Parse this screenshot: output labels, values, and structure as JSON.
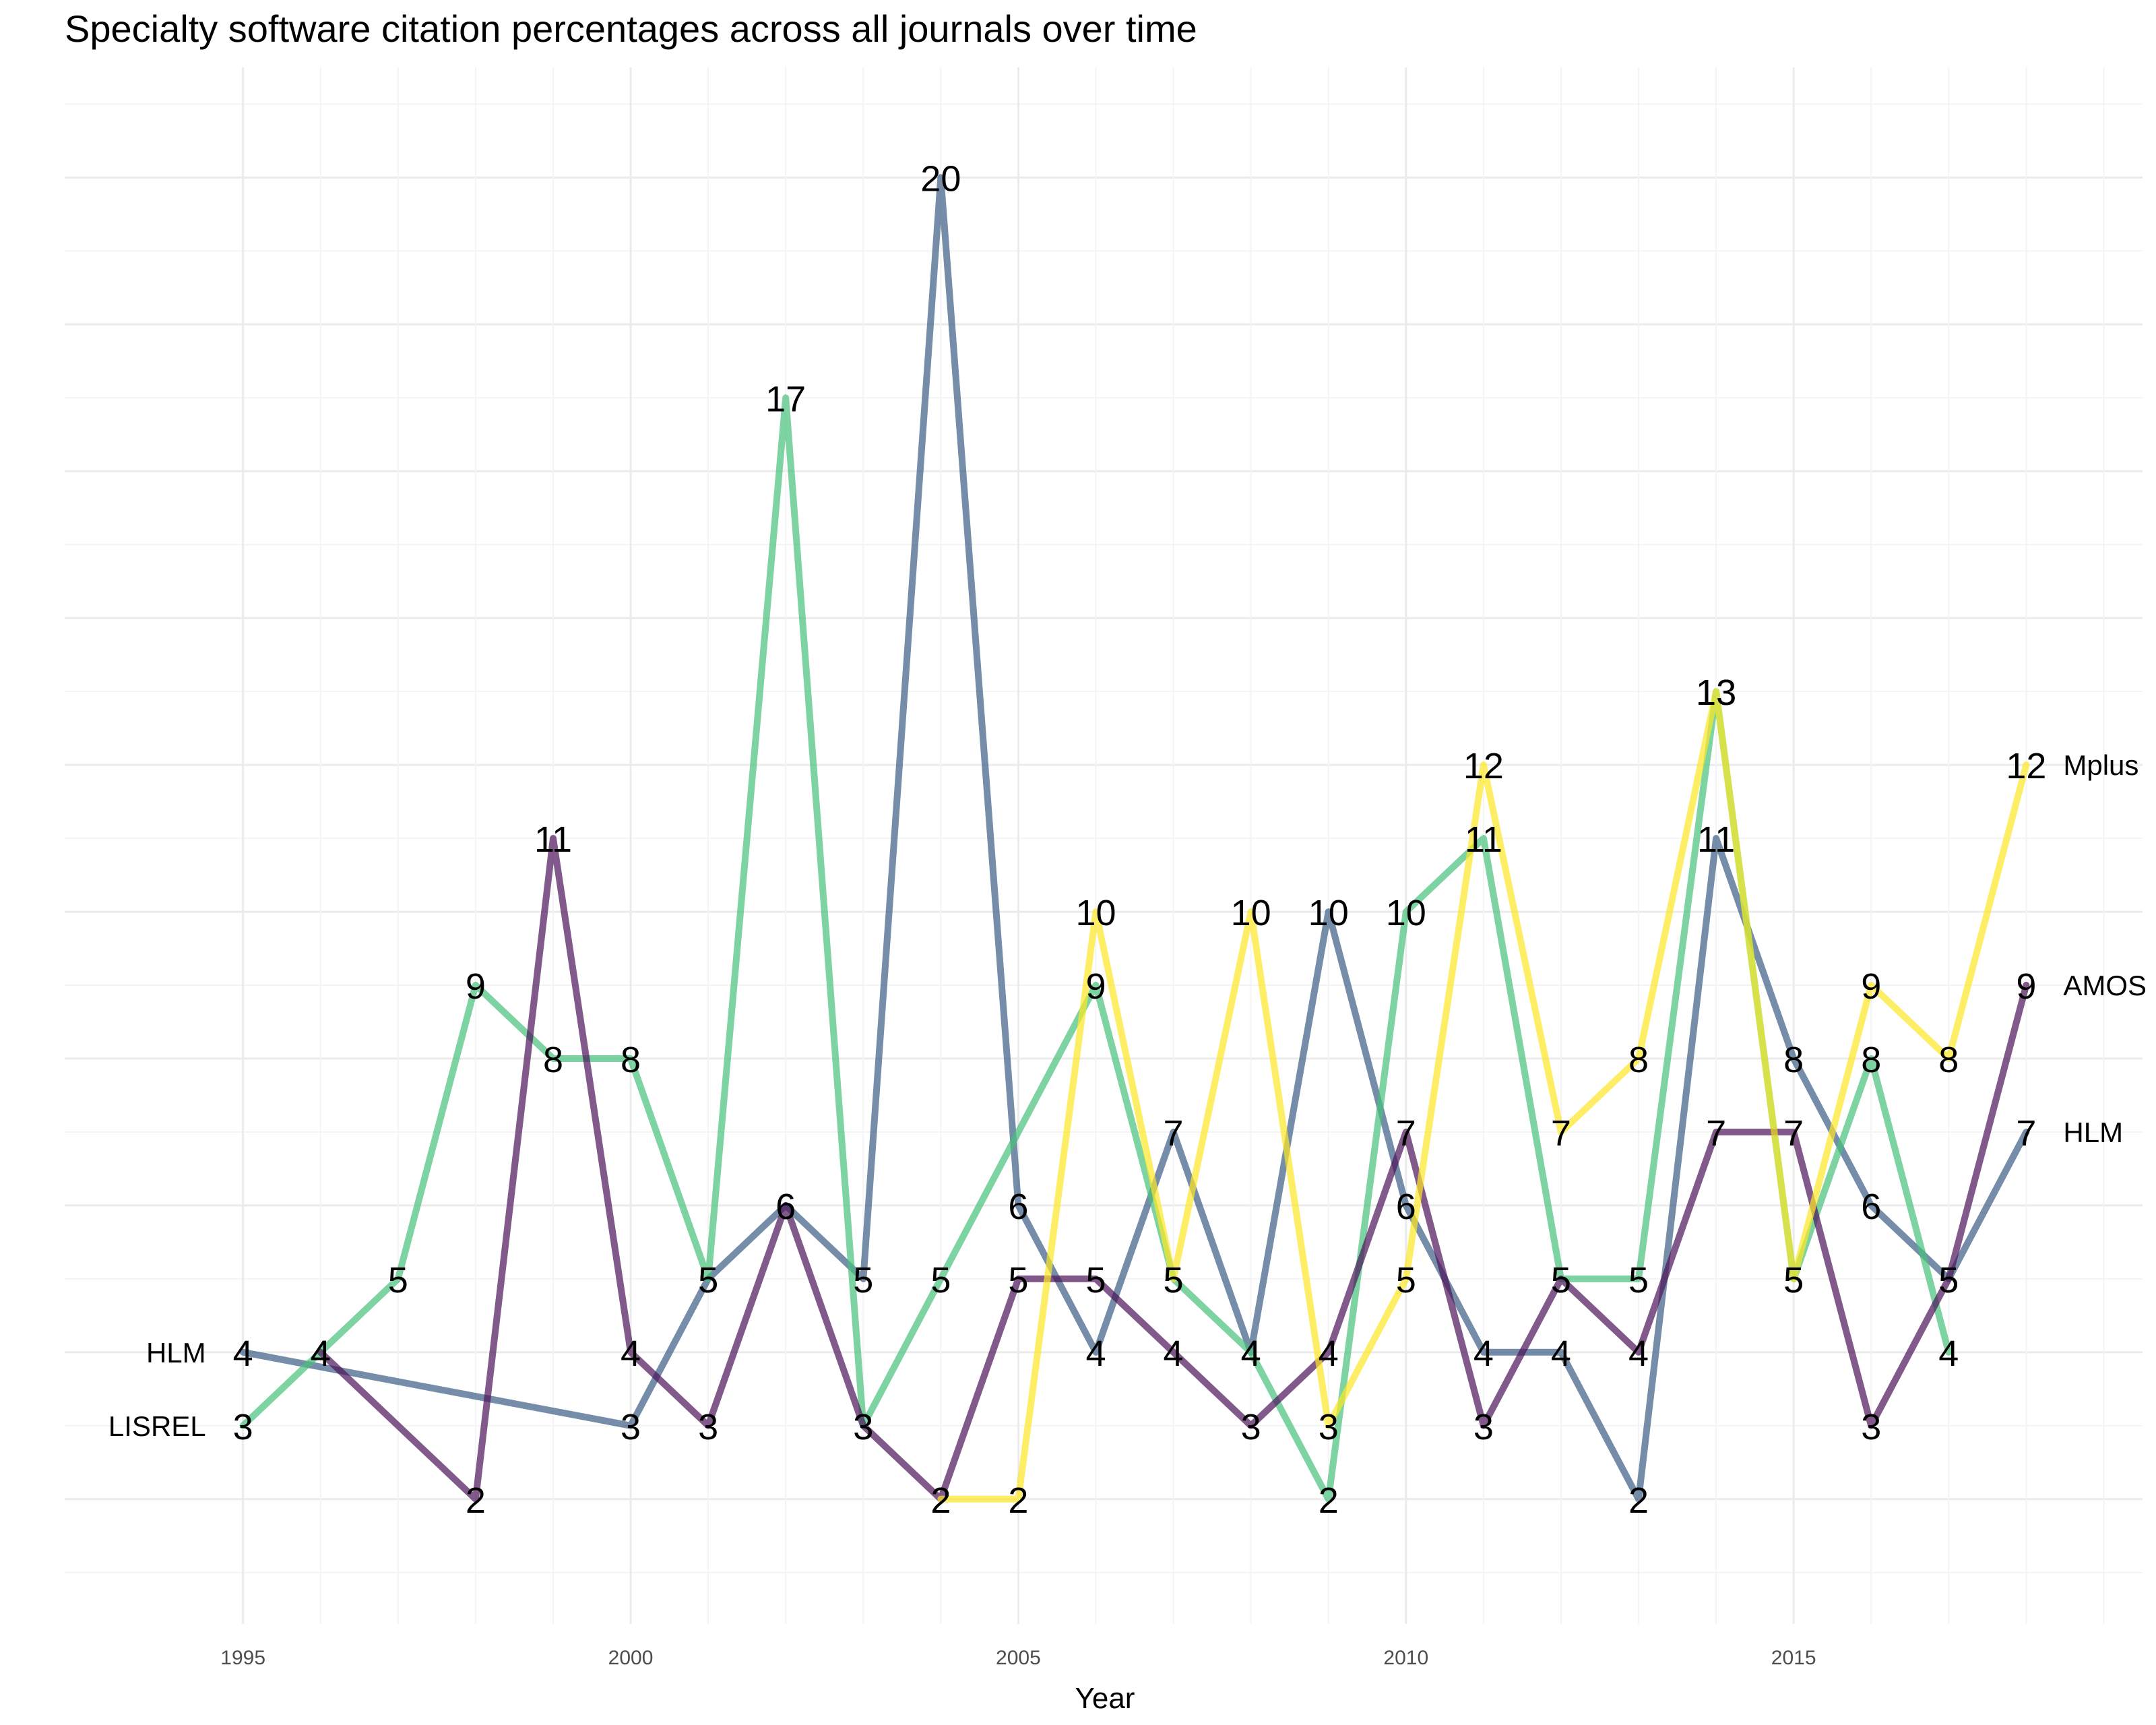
{
  "chart_data": {
    "type": "line",
    "title": "Specialty software citation percentages across all journals over time",
    "xlabel": "Year",
    "ylabel": "",
    "xlim": [
      1992.7,
      2019.5
    ],
    "ylim": [
      0.3,
      21.5
    ],
    "x_ticks": [
      1995,
      2000,
      2005,
      2010,
      2015
    ],
    "grid": true,
    "series": [
      {
        "color": "#3b5d84",
        "label_start": "HLM",
        "label_end": "HLM",
        "points": [
          [
            1995,
            4
          ],
          [
            2000,
            3
          ],
          [
            2001,
            5
          ],
          [
            2002,
            6
          ],
          [
            2003,
            5
          ],
          [
            2004,
            20
          ],
          [
            2005,
            6
          ],
          [
            2006,
            4
          ],
          [
            2007,
            7
          ],
          [
            2008,
            4
          ],
          [
            2009,
            10
          ],
          [
            2010,
            6
          ],
          [
            2011,
            4
          ],
          [
            2012,
            4
          ],
          [
            2013,
            2
          ],
          [
            2014,
            11
          ],
          [
            2015,
            8
          ],
          [
            2016,
            6
          ],
          [
            2017,
            5
          ],
          [
            2018,
            7
          ]
        ]
      },
      {
        "color": "#46c17b",
        "label_start": "LISREL",
        "label_end": "",
        "points": [
          [
            1995,
            3
          ],
          [
            1996,
            4
          ],
          [
            1997,
            5
          ],
          [
            1998,
            9
          ],
          [
            1999,
            8
          ],
          [
            2000,
            8
          ],
          [
            2001,
            5
          ],
          [
            2002,
            17
          ],
          [
            2003,
            3
          ],
          [
            2004,
            5
          ],
          [
            2006,
            9
          ],
          [
            2007,
            5
          ],
          [
            2008,
            4
          ],
          [
            2009,
            2
          ],
          [
            2010,
            10
          ],
          [
            2011,
            11
          ],
          [
            2012,
            5
          ],
          [
            2013,
            5
          ],
          [
            2014,
            13
          ],
          [
            2015,
            5
          ],
          [
            2016,
            8
          ],
          [
            2017,
            4
          ]
        ]
      },
      {
        "color": "#4b1359",
        "label_start": "",
        "label_end": "AMOS",
        "points": [
          [
            1996,
            4
          ],
          [
            1998,
            2
          ],
          [
            1999,
            11
          ],
          [
            2000,
            4
          ],
          [
            2001,
            3
          ],
          [
            2002,
            6
          ],
          [
            2003,
            3
          ],
          [
            2004,
            2
          ],
          [
            2005,
            5
          ],
          [
            2006,
            5
          ],
          [
            2007,
            4
          ],
          [
            2008,
            3
          ],
          [
            2009,
            4
          ],
          [
            2010,
            7
          ],
          [
            2011,
            3
          ],
          [
            2012,
            5
          ],
          [
            2013,
            4
          ],
          [
            2014,
            7
          ],
          [
            2015,
            7
          ],
          [
            2016,
            3
          ],
          [
            2017,
            5
          ],
          [
            2018,
            9
          ]
        ]
      },
      {
        "color": "#fde725",
        "label_start": "",
        "label_end": "Mplus",
        "points": [
          [
            2004,
            2
          ],
          [
            2005,
            2
          ],
          [
            2006,
            10
          ],
          [
            2007,
            5
          ],
          [
            2008,
            10
          ],
          [
            2009,
            3
          ],
          [
            2010,
            5
          ],
          [
            2011,
            12
          ],
          [
            2012,
            7
          ],
          [
            2013,
            8
          ],
          [
            2014,
            13
          ],
          [
            2015,
            5
          ],
          [
            2016,
            9
          ],
          [
            2017,
            8
          ],
          [
            2018,
            12
          ]
        ]
      }
    ]
  }
}
